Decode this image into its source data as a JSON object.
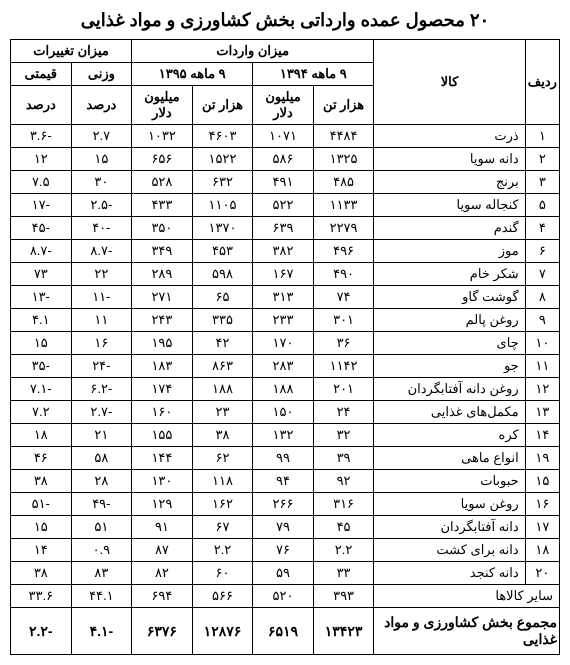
{
  "title": "۲۰ محصول عمده وارداتی بخش کشاورزی و مواد غذایی",
  "headers": {
    "row_idx": "ردیف",
    "product": "کالا",
    "import_amount": "میزان واردات",
    "period_1394": "۹ ماهه ۱۳۹۴",
    "period_1395": "۹ ماهه ۱۳۹۵",
    "thousand_ton": "هزار تن",
    "million_dollar": "میلیون دلار",
    "changes": "میزان تغییرات",
    "weight": "وزنی",
    "value": "قیمتی",
    "percent": "درصد"
  },
  "rows": [
    {
      "idx": "۱",
      "name": "ذرت",
      "t94": "۴۴۸۴",
      "d94": "۱۰۷۱",
      "t95": "۴۶۰۳",
      "d95": "۱۰۳۲",
      "w": "۲.۷",
      "v": "-۳.۶"
    },
    {
      "idx": "۲",
      "name": "دانه سویا",
      "t94": "۱۳۲۵",
      "d94": "۵۸۶",
      "t95": "۱۵۲۲",
      "d95": "۶۵۶",
      "w": "۱۵",
      "v": "۱۲"
    },
    {
      "idx": "۳",
      "name": "برنج",
      "t94": "۴۸۵",
      "d94": "۴۹۱",
      "t95": "۶۳۲",
      "d95": "۵۲۸",
      "w": "۳۰",
      "v": "۷.۵"
    },
    {
      "idx": "۵",
      "name": "کنجاله سویا",
      "t94": "۱۱۳۳",
      "d94": "۵۲۲",
      "t95": "۱۱۰۵",
      "d95": "۴۳۳",
      "w": "-۲.۵",
      "v": "-۱۷"
    },
    {
      "idx": "۴",
      "name": "گندم",
      "t94": "۲۲۷۹",
      "d94": "۶۳۹",
      "t95": "۱۳۷۰",
      "d95": "۳۵۰",
      "w": "-۴۰",
      "v": "-۴۵"
    },
    {
      "idx": "۶",
      "name": "موز",
      "t94": "۴۹۶",
      "d94": "۳۸۲",
      "t95": "۴۵۳",
      "d95": "۳۴۹",
      "w": "-۸.۷",
      "v": "-۸.۷"
    },
    {
      "idx": "۷",
      "name": "شکر خام",
      "t94": "۴۹۰",
      "d94": "۱۶۷",
      "t95": "۵۹۸",
      "d95": "۲۸۹",
      "w": "۲۲",
      "v": "۷۳"
    },
    {
      "idx": "۸",
      "name": "گوشت گاو",
      "t94": "۷۴",
      "d94": "۳۱۳",
      "t95": "۶۵",
      "d95": "۲۷۱",
      "w": "-۱۱",
      "v": "-۱۳"
    },
    {
      "idx": "۹",
      "name": "روغن پالم",
      "t94": "۳۰۱",
      "d94": "۲۳۳",
      "t95": "۳۳۵",
      "d95": "۲۴۳",
      "w": "۱۱",
      "v": "۴.۱"
    },
    {
      "idx": "۱۰",
      "name": "چای",
      "t94": "۳۶",
      "d94": "۱۷۰",
      "t95": "۴۲",
      "d95": "۱۹۵",
      "w": "۱۶",
      "v": "۱۵"
    },
    {
      "idx": "۱۱",
      "name": "جو",
      "t94": "۱۱۴۲",
      "d94": "۲۸۳",
      "t95": "۸۶۳",
      "d95": "۱۸۳",
      "w": "-۲۴",
      "v": "-۳۵"
    },
    {
      "idx": "۱۲",
      "name": "روغن دانه آفتابگردان",
      "t94": "۲۰۱",
      "d94": "۱۸۸",
      "t95": "۱۸۸",
      "d95": "۱۷۴",
      "w": "-۶.۲",
      "v": "-۷.۱"
    },
    {
      "idx": "۱۳",
      "name": "مکمل‌های غذایی",
      "t94": "۲۴",
      "d94": "۱۵۰",
      "t95": "۲۳",
      "d95": "۱۶۰",
      "w": "-۲.۷",
      "v": "۷.۲"
    },
    {
      "idx": "۱۴",
      "name": "کره",
      "t94": "۳۲",
      "d94": "۱۳۲",
      "t95": "۳۸",
      "d95": "۱۵۵",
      "w": "۲۱",
      "v": "۱۸"
    },
    {
      "idx": "۱۹",
      "name": "انواع ماهی",
      "t94": "۳۹",
      "d94": "۹۹",
      "t95": "۶۲",
      "d95": "۱۴۴",
      "w": "۵۸",
      "v": "۴۶"
    },
    {
      "idx": "۱۵",
      "name": "حبوبات",
      "t94": "۹۲",
      "d94": "۹۴",
      "t95": "۱۱۸",
      "d95": "۱۳۰",
      "w": "۲۸",
      "v": "۳۸"
    },
    {
      "idx": "۱۶",
      "name": "روغن سویا",
      "t94": "۳۱۶",
      "d94": "۲۶۶",
      "t95": "۱۶۲",
      "d95": "۱۲۹",
      "w": "-۴۹",
      "v": "-۵۱"
    },
    {
      "idx": "۱۷",
      "name": "دانه آفتابگردان",
      "t94": "۴۵",
      "d94": "۷۹",
      "t95": "۶۷",
      "d95": "۹۱",
      "w": "۵۱",
      "v": "۱۵"
    },
    {
      "idx": "۱۸",
      "name": "دانه برای کشت",
      "t94": "۲.۲",
      "d94": "۷۶",
      "t95": "۲.۲",
      "d95": "۸۷",
      "w": "۰.۹",
      "v": "۱۴"
    },
    {
      "idx": "۲۰",
      "name": "دانه کنجد",
      "t94": "۳۳",
      "d94": "۵۹",
      "t95": "۶۰",
      "d95": "۸۲",
      "w": "۸۳",
      "v": "۳۸"
    }
  ],
  "other_row": {
    "name": "سایر کالاها",
    "t94": "۳۹۳",
    "d94": "۵۲۰",
    "t95": "۵۶۶",
    "d95": "۶۹۴",
    "w": "۴۴.۱",
    "v": "۳۳.۶"
  },
  "total_row": {
    "name": "مجموع بخش کشاورزی و مواد غذایی",
    "t94": "۱۳۴۲۳",
    "d94": "۶۵۱۹",
    "t95": "۱۲۸۷۶",
    "d95": "۶۳۷۶",
    "w": "-۴.۱",
    "v": "-۲.۲"
  }
}
